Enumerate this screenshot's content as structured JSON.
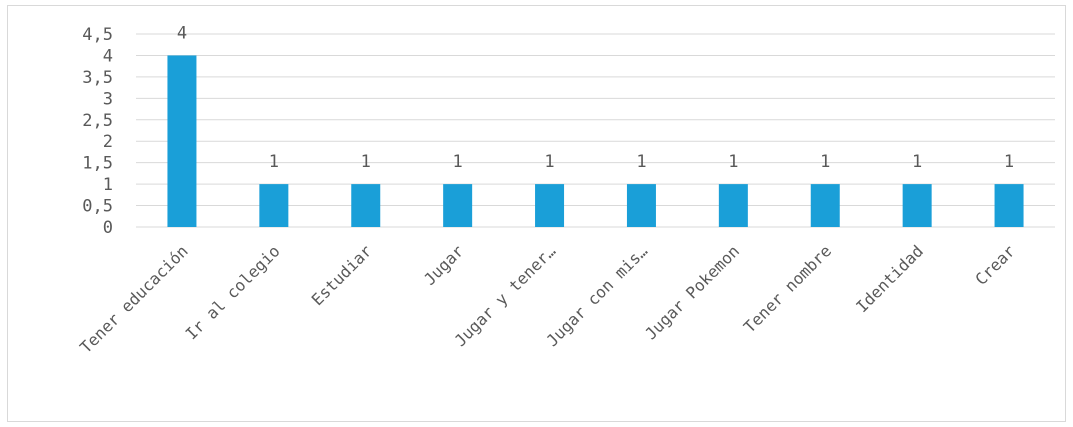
{
  "chart_data": {
    "type": "bar",
    "categories": [
      "Tener educación",
      "Ir al colegio",
      "Estudiar",
      "Jugar",
      "Jugar y tener…",
      "Jugar con mis…",
      "Jugar Pokemon",
      "Tener nombre",
      "Identidad",
      "Crear"
    ],
    "values": [
      4,
      1,
      1,
      1,
      1,
      1,
      1,
      1,
      1,
      1
    ],
    "data_labels": [
      "4",
      "1",
      "1",
      "1",
      "1",
      "1",
      "1",
      "1",
      "1",
      "1"
    ],
    "y_ticks": [
      {
        "value": 0,
        "label": "0"
      },
      {
        "value": 0.5,
        "label": "0,5"
      },
      {
        "value": 1,
        "label": "1"
      },
      {
        "value": 1.5,
        "label": "1,5"
      },
      {
        "value": 2,
        "label": "2"
      },
      {
        "value": 2.5,
        "label": "2,5"
      },
      {
        "value": 3,
        "label": "3"
      },
      {
        "value": 3.5,
        "label": "3,5"
      },
      {
        "value": 4,
        "label": "4"
      },
      {
        "value": 4.5,
        "label": "4,5"
      }
    ],
    "ylim": [
      0,
      4.5
    ],
    "title": "",
    "xlabel": "",
    "ylabel": "",
    "grid": true,
    "legend": "none",
    "colors": {
      "bar": "#1a9fd8",
      "grid": "#d9d9d9",
      "text": "#595959"
    }
  }
}
